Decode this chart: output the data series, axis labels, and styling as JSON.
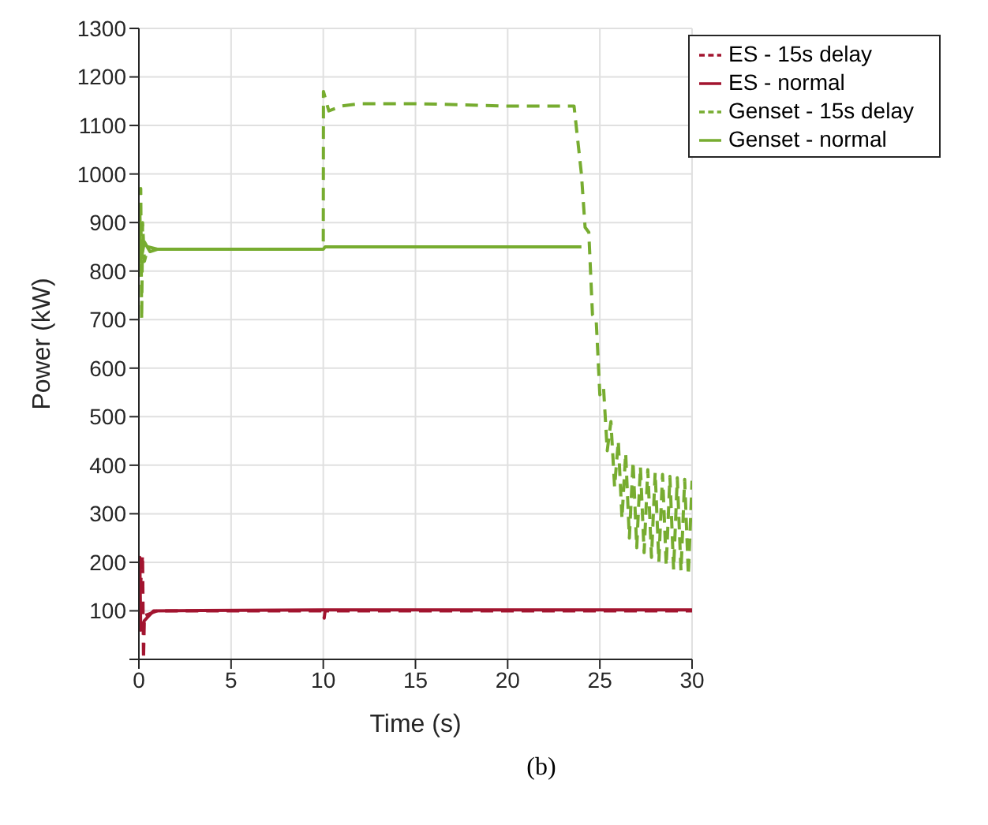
{
  "chart_data": {
    "type": "line",
    "xlabel": "Time (s)",
    "ylabel": "Power (kW)",
    "annotations": [
      "(b)"
    ],
    "xlim": [
      0,
      30
    ],
    "xticks": [
      0,
      5,
      10,
      15,
      20,
      25,
      30
    ],
    "ylim": [
      0,
      1300
    ],
    "yticks": [
      {
        "value": 0,
        "label": null
      },
      100,
      200,
      300,
      400,
      500,
      600,
      700,
      800,
      900,
      1000,
      1100,
      1200,
      1300
    ],
    "grid": true,
    "legend": "top right",
    "marker": "none",
    "series": [
      {
        "name": "ES - normal",
        "color": "#a2142f",
        "line_style": "solid",
        "x": [
          0,
          0.05,
          0.1,
          0.3,
          0.8,
          10,
          30
        ],
        "values": [
          100,
          210,
          60,
          80,
          100,
          102,
          102
        ]
      },
      {
        "name": "Genset - normal",
        "color": "#77ac30",
        "line_style": "solid",
        "x": [
          0,
          0.05,
          0.1,
          0.3,
          0.6,
          1,
          10,
          10.1,
          24
        ],
        "values": [
          800,
          930,
          820,
          860,
          840,
          845,
          845,
          850,
          850
        ]
      },
      {
        "name": "ES - 15s delay",
        "color": "#a2142f",
        "line_style": "dashed",
        "x": [
          0,
          0.2,
          0.25,
          0.3,
          1,
          10,
          10.05,
          10.1,
          30
        ],
        "values": [
          100,
          215,
          0,
          90,
          100,
          100,
          85,
          100,
          100
        ]
      },
      {
        "name": "Genset - 15s delay",
        "color": "#77ac30",
        "line_style": "dashed",
        "x": [
          0,
          0.1,
          0.15,
          0.2,
          0.3,
          0.5,
          1,
          10,
          10.01,
          10.3,
          11,
          12,
          15,
          20,
          23.6,
          24,
          24.2,
          24.4,
          24.6,
          24.8,
          25,
          25.2,
          25.4,
          25.6,
          25.8,
          26,
          26.2,
          26.4,
          26.6,
          26.8,
          27,
          27.2,
          27.4,
          27.6,
          27.8,
          28,
          28.2,
          28.4,
          28.6,
          28.8,
          29,
          29.2,
          29.4,
          29.6,
          29.8,
          30
        ],
        "values": [
          830,
          970,
          700,
          900,
          820,
          850,
          845,
          845,
          1170,
          1130,
          1140,
          1145,
          1145,
          1140,
          1140,
          1000,
          890,
          880,
          710,
          700,
          545,
          560,
          430,
          490,
          355,
          450,
          290,
          425,
          250,
          408,
          230,
          397,
          220,
          391,
          210,
          385,
          201,
          381,
          193,
          377,
          185,
          374,
          182,
          371,
          173,
          368
        ]
      }
    ]
  }
}
